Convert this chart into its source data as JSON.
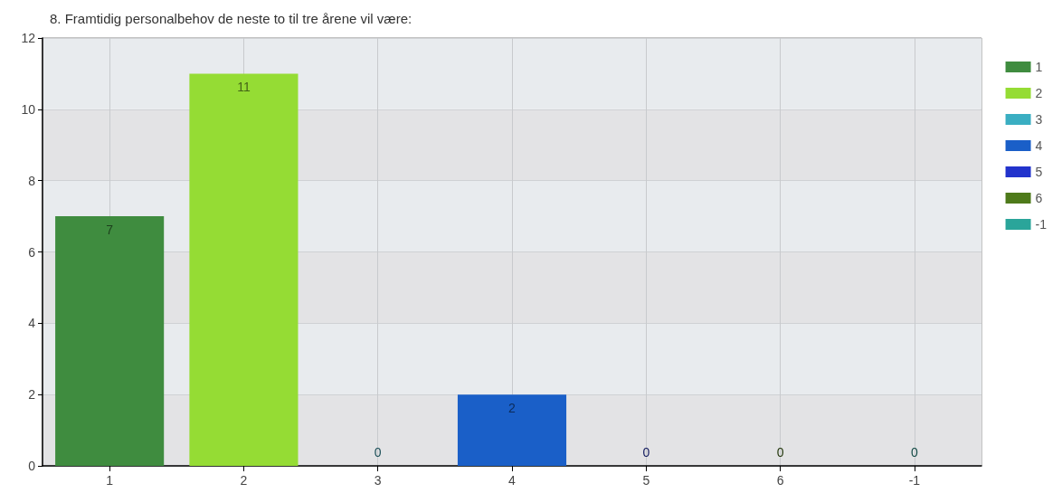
{
  "chart_data": {
    "type": "bar",
    "title": "8. Framtidig personalbehov de neste to til tre årene vil være:",
    "categories": [
      "1",
      "2",
      "3",
      "4",
      "5",
      "6",
      "-1"
    ],
    "series": [
      {
        "name": "1",
        "color": "#3f8c3f",
        "values": [
          7,
          null,
          null,
          null,
          null,
          null,
          null
        ]
      },
      {
        "name": "2",
        "color": "#95dc34",
        "values": [
          null,
          11,
          null,
          null,
          null,
          null,
          null
        ]
      },
      {
        "name": "3",
        "color": "#3aaec2",
        "values": [
          null,
          null,
          0,
          null,
          null,
          null,
          null
        ]
      },
      {
        "name": "4",
        "color": "#1a5fc8",
        "values": [
          null,
          null,
          null,
          2,
          null,
          null,
          null
        ]
      },
      {
        "name": "5",
        "color": "#2233cc",
        "values": [
          null,
          null,
          null,
          null,
          0,
          null,
          null
        ]
      },
      {
        "name": "6",
        "color": "#4e7a1a",
        "values": [
          null,
          null,
          null,
          null,
          null,
          0,
          null
        ]
      },
      {
        "name": "-1",
        "color": "#2aa59a",
        "values": [
          null,
          null,
          null,
          null,
          null,
          null,
          0
        ]
      }
    ],
    "stacked": true,
    "ylim": [
      0,
      12
    ],
    "yticks": [
      0,
      2,
      4,
      6,
      8,
      10,
      12
    ],
    "grid": true,
    "legend": "right",
    "data_labels": true
  }
}
